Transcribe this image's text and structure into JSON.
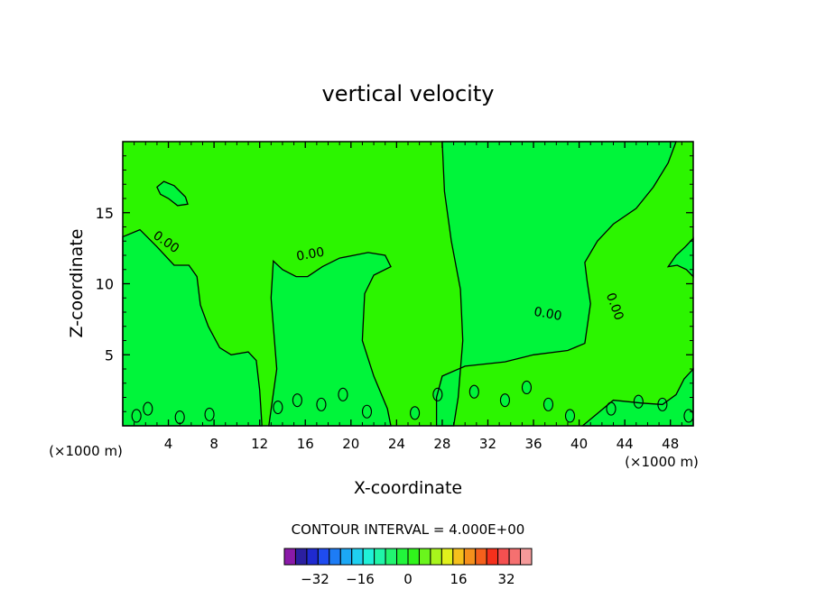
{
  "chart_data": {
    "type": "heatmap",
    "title": "vertical velocity",
    "xlabel": "X-coordinate",
    "ylabel": "Z-coordinate",
    "x_unit_left": "(×1000 m)",
    "x_unit_right": "(×1000 m)",
    "xlim": [
      0,
      50
    ],
    "ylim": [
      0,
      20
    ],
    "x_ticks": [
      "4",
      "8",
      "12",
      "16",
      "20",
      "24",
      "28",
      "32",
      "36",
      "40",
      "44",
      "48"
    ],
    "y_ticks": [
      "5",
      "10",
      "15"
    ],
    "contour_labels": [
      "0.00",
      "0.00",
      "0.00",
      "0.00"
    ],
    "contour_interval_text": "CONTOUR INTERVAL = 4.000E+00",
    "colorbar": {
      "tick_labels": [
        "−32",
        "−16",
        "0",
        "16",
        "32"
      ],
      "colors": [
        "#8a1aa8",
        "#2b1fa0",
        "#1f2ad0",
        "#1f4cf0",
        "#1d7cf5",
        "#1ca8f5",
        "#1fd0f0",
        "#20f0d8",
        "#20f5a8",
        "#22f570",
        "#22f53c",
        "#30f51c",
        "#6af51c",
        "#a8f51c",
        "#e0f01c",
        "#f5c01c",
        "#f5901c",
        "#f5601c",
        "#f5301c",
        "#f55050",
        "#f57070",
        "#f59a9a"
      ]
    },
    "fill_colors": {
      "positive": "#2cf500",
      "negative": "#00f53a"
    }
  }
}
